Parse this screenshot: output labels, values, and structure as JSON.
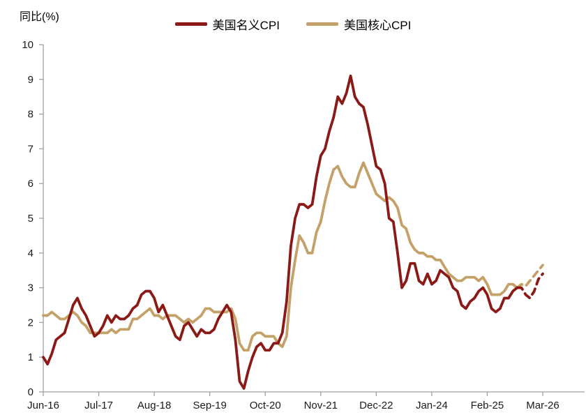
{
  "title": "同比(%)",
  "legend": [
    {
      "label": "美国名义CPI",
      "color": "#8B1A17"
    },
    {
      "label": "美国核心CPI",
      "color": "#C4A169"
    }
  ],
  "axis_colors": {
    "line": "#A0A0A0",
    "text": "#1A1A1A"
  },
  "chart_data": {
    "type": "line",
    "title": "同比(%)",
    "x_start": "Jun-16",
    "x_end": "Mar-26",
    "x_points": 118,
    "x_tick_labels": [
      "Jun-16",
      "Jul-17",
      "Aug-18",
      "Sep-19",
      "Oct-20",
      "Nov-21",
      "Dec-22",
      "Jan-24",
      "Feb-25",
      "Mar-26"
    ],
    "x_tick_indices": [
      0,
      13,
      26,
      39,
      52,
      65,
      78,
      91,
      104,
      117
    ],
    "ylim": [
      0,
      10
    ],
    "y_ticks": [
      0,
      1,
      2,
      3,
      4,
      5,
      6,
      7,
      8,
      9,
      10
    ],
    "grid": false,
    "legend_position": "top-center",
    "forecast_from_index": 111,
    "forecast_style": "dashed",
    "series": [
      {
        "name": "美国名义CPI",
        "color": "#8B1A17",
        "values": [
          1.0,
          0.8,
          1.1,
          1.5,
          1.6,
          1.7,
          2.1,
          2.5,
          2.7,
          2.4,
          2.2,
          1.9,
          1.6,
          1.7,
          1.9,
          2.2,
          2.0,
          2.2,
          2.1,
          2.1,
          2.2,
          2.4,
          2.5,
          2.8,
          2.9,
          2.9,
          2.7,
          2.3,
          2.5,
          2.2,
          1.9,
          1.6,
          1.5,
          1.9,
          2.0,
          1.8,
          1.6,
          1.8,
          1.7,
          1.7,
          1.8,
          2.1,
          2.3,
          2.5,
          2.3,
          1.5,
          0.3,
          0.1,
          0.6,
          1.0,
          1.3,
          1.4,
          1.2,
          1.2,
          1.4,
          1.4,
          1.7,
          2.6,
          4.2,
          5.0,
          5.4,
          5.4,
          5.3,
          5.4,
          6.2,
          6.8,
          7.0,
          7.5,
          7.9,
          8.5,
          8.3,
          8.6,
          9.1,
          8.5,
          8.3,
          8.2,
          7.7,
          7.1,
          6.5,
          6.4,
          6.0,
          5.0,
          4.9,
          4.0,
          3.0,
          3.2,
          3.7,
          3.7,
          3.2,
          3.1,
          3.4,
          3.1,
          3.2,
          3.5,
          3.4,
          3.3,
          3.0,
          2.9,
          2.5,
          2.4,
          2.6,
          2.7,
          2.9,
          3.0,
          2.8,
          2.4,
          2.3,
          2.4,
          2.7,
          2.7,
          2.9,
          3.0,
          3.0,
          2.8,
          2.7,
          2.9,
          3.25,
          3.4
        ]
      },
      {
        "name": "美国核心CPI",
        "color": "#C4A169",
        "values": [
          2.2,
          2.2,
          2.3,
          2.2,
          2.1,
          2.1,
          2.2,
          2.3,
          2.2,
          2.0,
          1.9,
          1.7,
          1.7,
          1.7,
          1.7,
          1.7,
          1.8,
          1.7,
          1.8,
          1.8,
          1.8,
          2.1,
          2.1,
          2.2,
          2.3,
          2.4,
          2.2,
          2.2,
          2.1,
          2.2,
          2.2,
          2.2,
          2.1,
          2.0,
          2.1,
          2.0,
          2.1,
          2.2,
          2.4,
          2.4,
          2.3,
          2.3,
          2.3,
          2.3,
          2.4,
          2.1,
          1.4,
          1.2,
          1.2,
          1.6,
          1.7,
          1.7,
          1.6,
          1.6,
          1.6,
          1.4,
          1.3,
          1.6,
          3.0,
          3.8,
          4.5,
          4.3,
          4.0,
          4.0,
          4.6,
          4.9,
          5.5,
          6.0,
          6.4,
          6.5,
          6.2,
          6.0,
          5.9,
          5.9,
          6.3,
          6.6,
          6.3,
          6.0,
          5.7,
          5.6,
          5.5,
          5.6,
          5.5,
          5.3,
          4.8,
          4.7,
          4.3,
          4.1,
          4.0,
          4.0,
          3.9,
          3.9,
          3.8,
          3.8,
          3.6,
          3.4,
          3.3,
          3.2,
          3.2,
          3.3,
          3.3,
          3.3,
          3.2,
          3.3,
          3.1,
          2.8,
          2.8,
          2.8,
          2.9,
          3.1,
          3.1,
          3.0,
          3.1,
          3.05,
          3.2,
          3.35,
          3.5,
          3.65
        ]
      }
    ]
  }
}
